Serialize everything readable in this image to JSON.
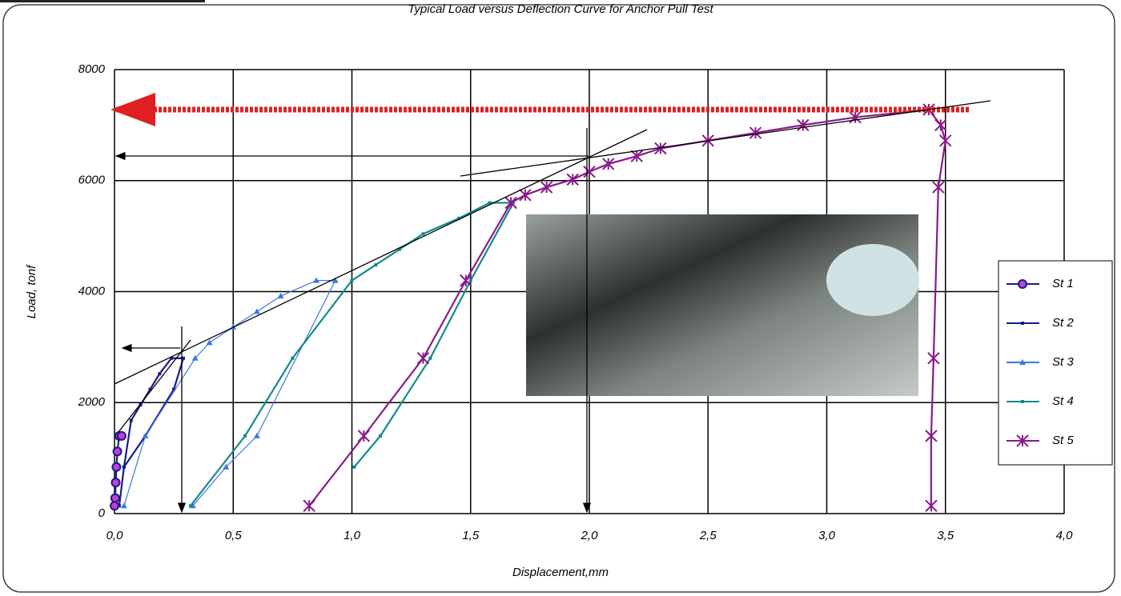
{
  "chart_data": {
    "type": "line",
    "title": "Typical Load versus Deflection Curve for Anchor Pull Test",
    "x_label": "Displacement,mm",
    "y_label": "Load, tonf",
    "xlim": [
      0,
      4
    ],
    "ylim": [
      0,
      8000
    ],
    "xticks": [
      {
        "value": 0,
        "label": "0,0"
      },
      {
        "value": 0.5,
        "label": "0,5"
      },
      {
        "value": 1,
        "label": "1,0"
      },
      {
        "value": 1.5,
        "label": "1,5"
      },
      {
        "value": 2,
        "label": "2,0"
      },
      {
        "value": 2.5,
        "label": "2,5"
      },
      {
        "value": 3,
        "label": "3,0"
      },
      {
        "value": 3.5,
        "label": "3,5"
      },
      {
        "value": 4,
        "label": "4,0"
      }
    ],
    "yticks": [
      0,
      2000,
      4000,
      6000,
      8000
    ],
    "grid": true,
    "legend": "right",
    "series": [
      {
        "name": "St 1",
        "color": "#1a1a8c",
        "marker": "circle",
        "x": [
          0,
          0.003,
          0.005,
          0.008,
          0.012,
          0.02,
          0.03
        ],
        "values": [
          140,
          280,
          560,
          840,
          1120,
          1400,
          1400
        ]
      },
      {
        "name": "St 2",
        "color": "#1a1a8c",
        "marker": "square",
        "x": [
          0.02,
          0.04,
          0.07,
          0.11,
          0.15,
          0.19,
          0.24,
          0.29,
          0.25,
          0.13,
          0.04
        ],
        "values": [
          140,
          840,
          1680,
          1960,
          2240,
          2520,
          2800,
          2800,
          2240,
          1400,
          840
        ]
      },
      {
        "name": "St 3",
        "color": "#3a78e0",
        "marker": "triangle",
        "x": [
          0.04,
          0.13,
          0.34,
          0.4,
          0.5,
          0.6,
          0.7,
          0.85,
          0.93,
          0.6,
          0.47,
          0.33
        ],
        "values": [
          140,
          1400,
          2800,
          3080,
          3360,
          3640,
          3920,
          4200,
          4200,
          1400,
          840,
          140
        ]
      },
      {
        "name": "St 4",
        "color": "#138a8a",
        "marker": "square",
        "x": [
          0.32,
          0.55,
          0.75,
          1.0,
          1.1,
          1.2,
          1.3,
          1.45,
          1.58,
          1.68,
          1.5,
          1.33,
          1.12,
          1.01
        ],
        "values": [
          140,
          1400,
          2800,
          4200,
          4480,
          4760,
          5040,
          5320,
          5600,
          5600,
          4200,
          2800,
          1400,
          840
        ]
      },
      {
        "name": "St 5",
        "color": "#8b1a8b",
        "marker": "asterisk",
        "x": [
          0.82,
          1.05,
          1.3,
          1.48,
          1.67,
          1.73,
          1.82,
          1.93,
          2.0,
          2.08,
          2.2,
          2.3,
          2.5,
          2.7,
          2.9,
          3.12,
          3.43,
          3.48,
          3.5,
          3.47,
          3.45,
          3.44,
          3.44
        ],
        "values": [
          140,
          1400,
          2800,
          4200,
          5600,
          5740,
          5880,
          6020,
          6160,
          6300,
          6440,
          6580,
          6720,
          6860,
          7000,
          7140,
          7280,
          7000,
          6720,
          5880,
          2800,
          1400,
          140
        ]
      }
    ]
  }
}
